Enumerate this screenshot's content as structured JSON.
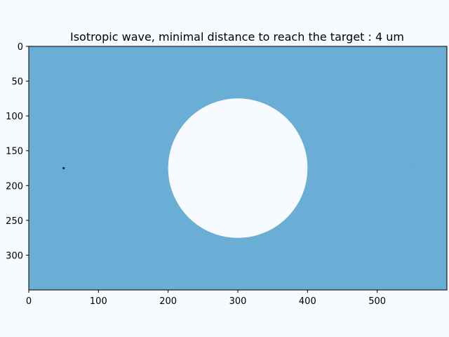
{
  "chart_data": {
    "type": "heatmap",
    "title": "Isotropic wave, minimal distance to reach the target : 4 um",
    "xlabel": "",
    "ylabel": "",
    "xlim": [
      0,
      600
    ],
    "ylim": [
      350,
      0
    ],
    "x_ticks": [
      0,
      100,
      200,
      300,
      400,
      500
    ],
    "y_ticks": [
      0,
      50,
      100,
      150,
      200,
      250,
      300
    ],
    "grid": false,
    "colors": {
      "background_field": "#6aadd5",
      "obstacle": "#f7fbff",
      "source_marker": "#08306b",
      "target_marker": "#4f8fc4",
      "figure_background": "#f7fafe"
    },
    "obstacle": {
      "shape": "circle",
      "center": [
        300,
        175
      ],
      "radius": 100
    },
    "source": {
      "x": 50,
      "y": 175
    },
    "target": {
      "x": 550,
      "y": 175
    }
  }
}
